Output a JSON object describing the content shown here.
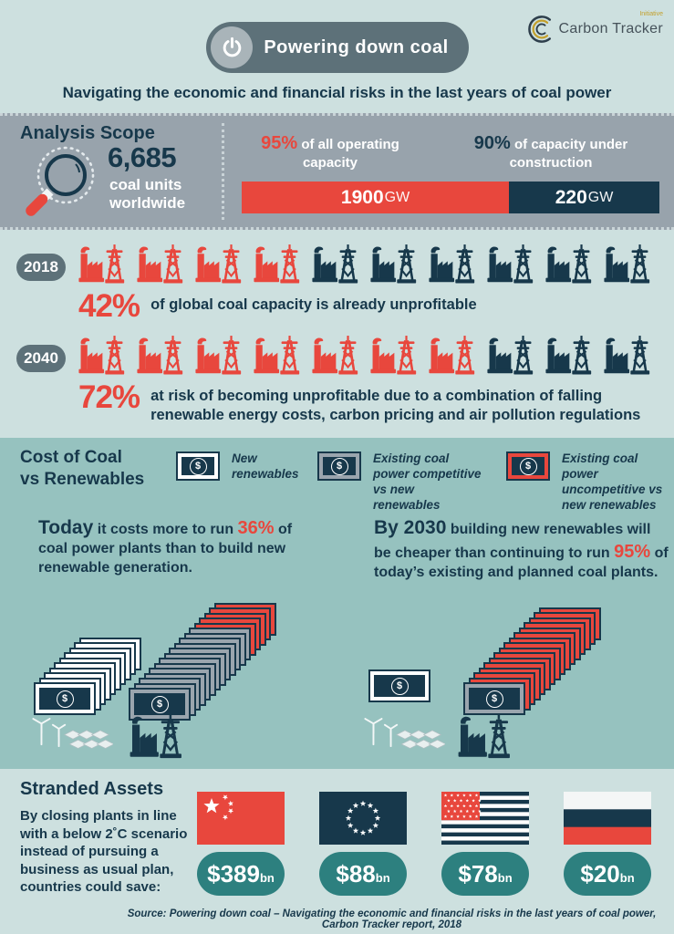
{
  "colors": {
    "bgLight": "#cde0df",
    "bgMid": "#96c2bf",
    "bandGrey": "#98a3ac",
    "slate": "#5d7179",
    "navy": "#17384b",
    "red": "#e8473d",
    "teal": "#2d807f",
    "gold": "#c3a02c",
    "noteGrey": "#9aa5ae"
  },
  "header": {
    "title": "Powering down coal",
    "logo": {
      "text": "Carbon Tracker",
      "sub": "Initiative"
    },
    "subtitle": "Navigating the economic and financial risks in the last years of coal power"
  },
  "analysis": {
    "heading": "Analysis Scope",
    "count": "6,685",
    "count_label": "coal units worldwide",
    "operating": {
      "pct": "95%",
      "label": " of all operating capacity"
    },
    "construction": {
      "pct": "90%",
      "label": " of capacity under construction"
    },
    "bar": {
      "operating_value": "1900",
      "operating_unit": "GW",
      "construction_value": "220",
      "construction_unit": "GW"
    }
  },
  "rows": [
    {
      "year": "2018",
      "icons": {
        "red": 4,
        "dark": 6
      },
      "pct": "42%",
      "text": "of global coal capacity is already unprofitable"
    },
    {
      "year": "2040",
      "icons": {
        "red": 7,
        "dark": 3
      },
      "pct": "72%",
      "text": "at risk of becoming unprofitable due to a combination of falling renewable energy costs, carbon pricing and air pollution regulations"
    }
  ],
  "cost": {
    "heading": "Cost of Coal\nvs Renewables",
    "legend": [
      {
        "frame": "white",
        "label": "New renewables"
      },
      {
        "frame": "grey",
        "label": "Existing coal power competitive vs new renewables"
      },
      {
        "frame": "red",
        "label": "Existing coal power uncompetitive vs new renewables"
      }
    ],
    "today": {
      "lead": "Today",
      "t1": " it costs more to run ",
      "pct": "36%",
      "t2": " of coal power plants than to build new renewable generation."
    },
    "by2030": {
      "lead": "By 2030",
      "t1": " building new renewables will be cheaper than continuing to run ",
      "pct": "95%",
      "t2": " of today’s existing and planned coal plants."
    },
    "stacks": {
      "today_renewables": {
        "frame": "white",
        "count": 10
      },
      "today_coal": {
        "frame": "grey",
        "count": 13,
        "back_frame": "red",
        "back_count": 5
      },
      "by2030_renewables": {
        "frame": "white",
        "count": 1
      },
      "by2030_coal": {
        "frame": "grey",
        "count": 1,
        "back_frame": "red",
        "back_count": 15
      }
    }
  },
  "stranded": {
    "heading": "Stranded Assets",
    "body": "By closing plants in line with a below 2˚C scenario instead of pursuing a business as usual plan, countries could save:",
    "items": [
      {
        "flag": "china",
        "value": "$389",
        "unit": "bn"
      },
      {
        "flag": "eu",
        "value": "$88",
        "unit": "bn"
      },
      {
        "flag": "usa",
        "value": "$78",
        "unit": "bn"
      },
      {
        "flag": "russia",
        "value": "$20",
        "unit": "bn"
      }
    ]
  },
  "source": "Source: Powering down coal – Navigating the economic and financial risks in the last years of coal power, Carbon Tracker report, 2018"
}
